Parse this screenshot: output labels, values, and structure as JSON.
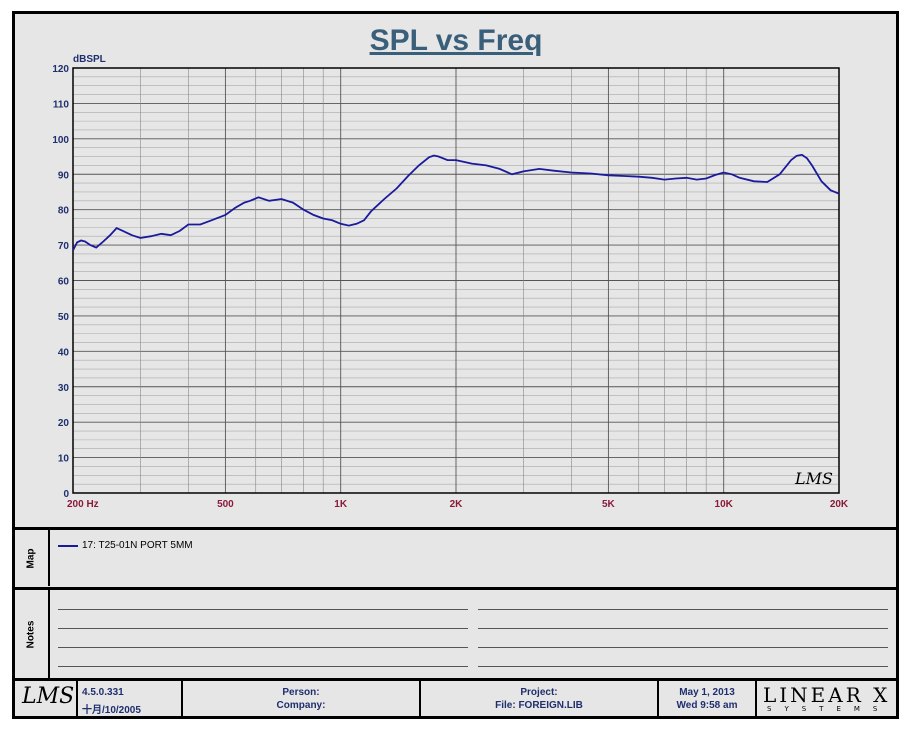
{
  "chart_data": {
    "type": "line",
    "title": "SPL vs Freq",
    "ylabel": "dBSPL",
    "xscale": "log",
    "xlim": [
      200,
      20000
    ],
    "ylim": [
      0,
      120
    ],
    "yticks": [
      0,
      10,
      20,
      30,
      40,
      50,
      60,
      70,
      80,
      90,
      100,
      110,
      120
    ],
    "xtick_labels": [
      {
        "v": 200,
        "label": "200  Hz"
      },
      {
        "v": 500,
        "label": "500"
      },
      {
        "v": 1000,
        "label": "1K"
      },
      {
        "v": 2000,
        "label": "2K"
      },
      {
        "v": 5000,
        "label": "5K"
      },
      {
        "v": 10000,
        "label": "10K"
      },
      {
        "v": 20000,
        "label": "20K"
      }
    ],
    "grid": true,
    "watermark": "LMS",
    "series": [
      {
        "name": "17: T25-01N PORT 5MM",
        "color": "#1a1a9c",
        "x": [
          200,
          205,
          210,
          215,
          222,
          230,
          240,
          250,
          260,
          270,
          285,
          300,
          320,
          340,
          360,
          380,
          400,
          430,
          460,
          500,
          530,
          560,
          580,
          610,
          650,
          700,
          750,
          800,
          850,
          900,
          950,
          1000,
          1050,
          1100,
          1150,
          1200,
          1300,
          1400,
          1500,
          1600,
          1700,
          1750,
          1800,
          1900,
          2000,
          2200,
          2400,
          2600,
          2800,
          3000,
          3300,
          3600,
          4000,
          4500,
          5000,
          5500,
          6000,
          6500,
          7000,
          7500,
          8000,
          8500,
          9000,
          9500,
          10000,
          10500,
          11000,
          12000,
          13000,
          14000,
          15000,
          15500,
          16000,
          16500,
          17000,
          18000,
          19000,
          20000
        ],
        "y": [
          68.5,
          70.8,
          71.3,
          71.0,
          70.0,
          69.3,
          71.0,
          72.8,
          74.8,
          74.0,
          72.8,
          72.0,
          72.5,
          73.2,
          72.8,
          74.0,
          75.8,
          75.8,
          77.0,
          78.5,
          80.5,
          82.0,
          82.5,
          83.5,
          82.5,
          83.0,
          82.0,
          80.0,
          78.5,
          77.5,
          77.0,
          76.0,
          75.5,
          76.0,
          77.0,
          79.5,
          83.0,
          86.0,
          89.5,
          92.5,
          94.8,
          95.3,
          95.0,
          94.0,
          94.0,
          93.0,
          92.5,
          91.5,
          90.0,
          90.8,
          91.5,
          91.0,
          90.5,
          90.2,
          89.7,
          89.5,
          89.3,
          89.0,
          88.5,
          88.8,
          89.0,
          88.5,
          88.8,
          89.8,
          90.5,
          90.0,
          89.0,
          88.0,
          87.8,
          90.0,
          94.0,
          95.2,
          95.5,
          94.5,
          92.5,
          88.0,
          85.5,
          84.5
        ]
      }
    ]
  },
  "panels": {
    "map_label": "Map",
    "notes_label": "Notes",
    "legend_entry": "17: T25-01N PORT 5MM"
  },
  "footer": {
    "logo": "LMS",
    "version": "4.5.0.331",
    "build_date": "十月/10/2005",
    "person_label": "Person:",
    "company_label": "Company:",
    "project_label": "Project:",
    "file_label": "File: FOREIGN.LIB",
    "date": "May  1, 2013",
    "time": "Wed  9:58 am",
    "brand": "LINEAR X",
    "brand_sub": "SYSTEMS"
  }
}
